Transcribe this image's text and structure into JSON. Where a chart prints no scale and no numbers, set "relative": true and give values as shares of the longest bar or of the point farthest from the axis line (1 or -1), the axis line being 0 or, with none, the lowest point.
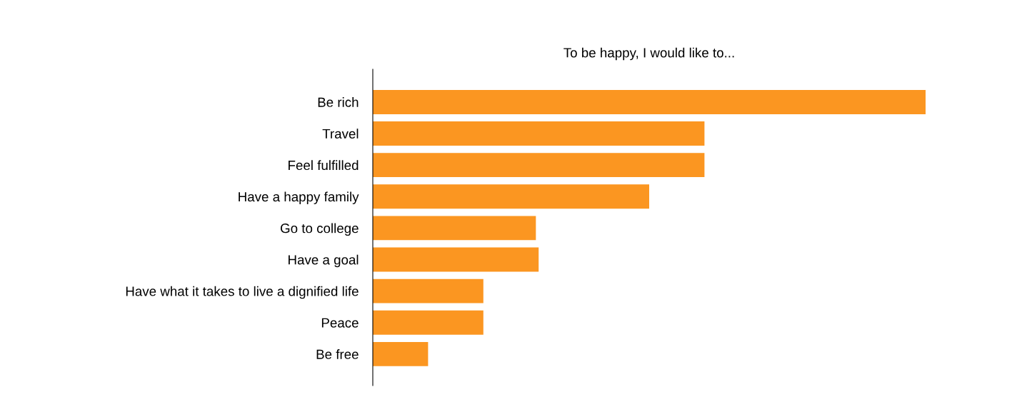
{
  "chart_data": {
    "type": "bar",
    "orientation": "horizontal",
    "relative": true,
    "title": "To be happy, I would like to...",
    "categories": [
      "Be rich",
      "Travel",
      "Feel fulfilled",
      "Have a happy family",
      "Go to college",
      "Have a goal",
      "Have what it takes to live a dignified life",
      "Peace",
      "Be free"
    ],
    "values": [
      1,
      0.6,
      0.6,
      0.5,
      0.295,
      0.3,
      0.2,
      0.2,
      0.1
    ],
    "color": "#fb9621",
    "grid": false,
    "legend": false
  }
}
